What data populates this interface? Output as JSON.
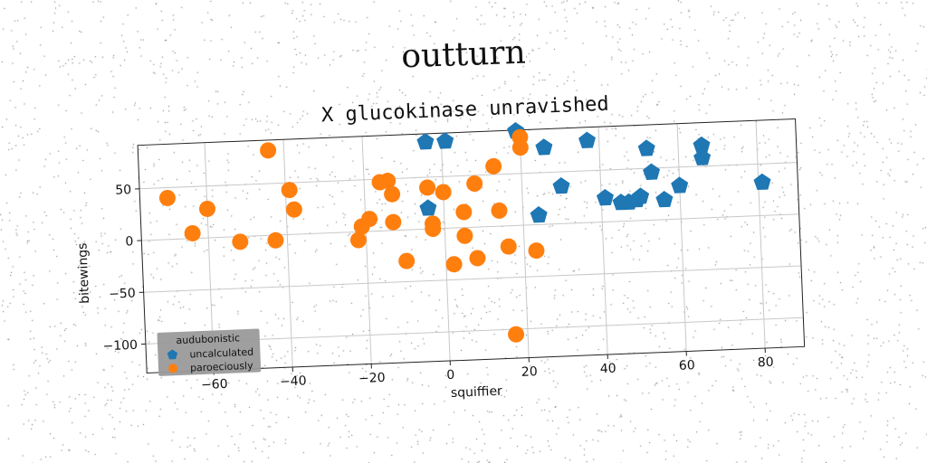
{
  "suptitle": "outturn",
  "chart_data": {
    "type": "scatter",
    "title": "X glucokinase unravished",
    "xlabel": "squiffier",
    "ylabel": "bitewings",
    "xlim": [
      -77,
      90
    ],
    "ylim": [
      -128,
      92
    ],
    "xticks": [
      -60,
      -40,
      -20,
      0,
      20,
      40,
      60,
      80
    ],
    "yticks": [
      -100,
      -50,
      0,
      50
    ],
    "grid": true,
    "legend": {
      "title": "audubonistic",
      "placement": "lower-left"
    },
    "series": [
      {
        "name": "uncalculated",
        "color": "#1f77b4",
        "marker": "pentagon",
        "points": [
          [
            -4,
            84
          ],
          [
            1,
            84
          ],
          [
            19,
            91
          ],
          [
            26,
            74
          ],
          [
            37,
            79
          ],
          [
            52,
            69
          ],
          [
            66,
            70
          ],
          [
            -4,
            20
          ],
          [
            24,
            9
          ],
          [
            30,
            36
          ],
          [
            41,
            23
          ],
          [
            45,
            18
          ],
          [
            47,
            18
          ],
          [
            49,
            20
          ],
          [
            50,
            23
          ],
          [
            53,
            46
          ],
          [
            56,
            19
          ],
          [
            60,
            32
          ],
          [
            66,
            58
          ],
          [
            81,
            32
          ]
        ]
      },
      {
        "name": "paroeciously",
        "color": "#ff7f0e",
        "marker": "circle",
        "points": [
          [
            -70,
            40
          ],
          [
            -44,
            82
          ],
          [
            -60,
            28
          ],
          [
            -64,
            5
          ],
          [
            -52,
            -5
          ],
          [
            -43,
            -5
          ],
          [
            -39,
            43
          ],
          [
            -38,
            24
          ],
          [
            -22,
            -8
          ],
          [
            -21,
            5
          ],
          [
            -19,
            12
          ],
          [
            -16,
            47
          ],
          [
            -14,
            48
          ],
          [
            -13,
            35
          ],
          [
            -13,
            8
          ],
          [
            -10,
            -30
          ],
          [
            -4,
            40
          ],
          [
            -3,
            0
          ],
          [
            -3,
            5
          ],
          [
            0,
            35
          ],
          [
            2,
            -35
          ],
          [
            5,
            15
          ],
          [
            5,
            -8
          ],
          [
            8,
            42
          ],
          [
            8,
            -30
          ],
          [
            13,
            58
          ],
          [
            14,
            15
          ],
          [
            16,
            -20
          ],
          [
            17,
            -105
          ],
          [
            20,
            85
          ],
          [
            20,
            75
          ],
          [
            23,
            -25
          ]
        ]
      }
    ]
  }
}
